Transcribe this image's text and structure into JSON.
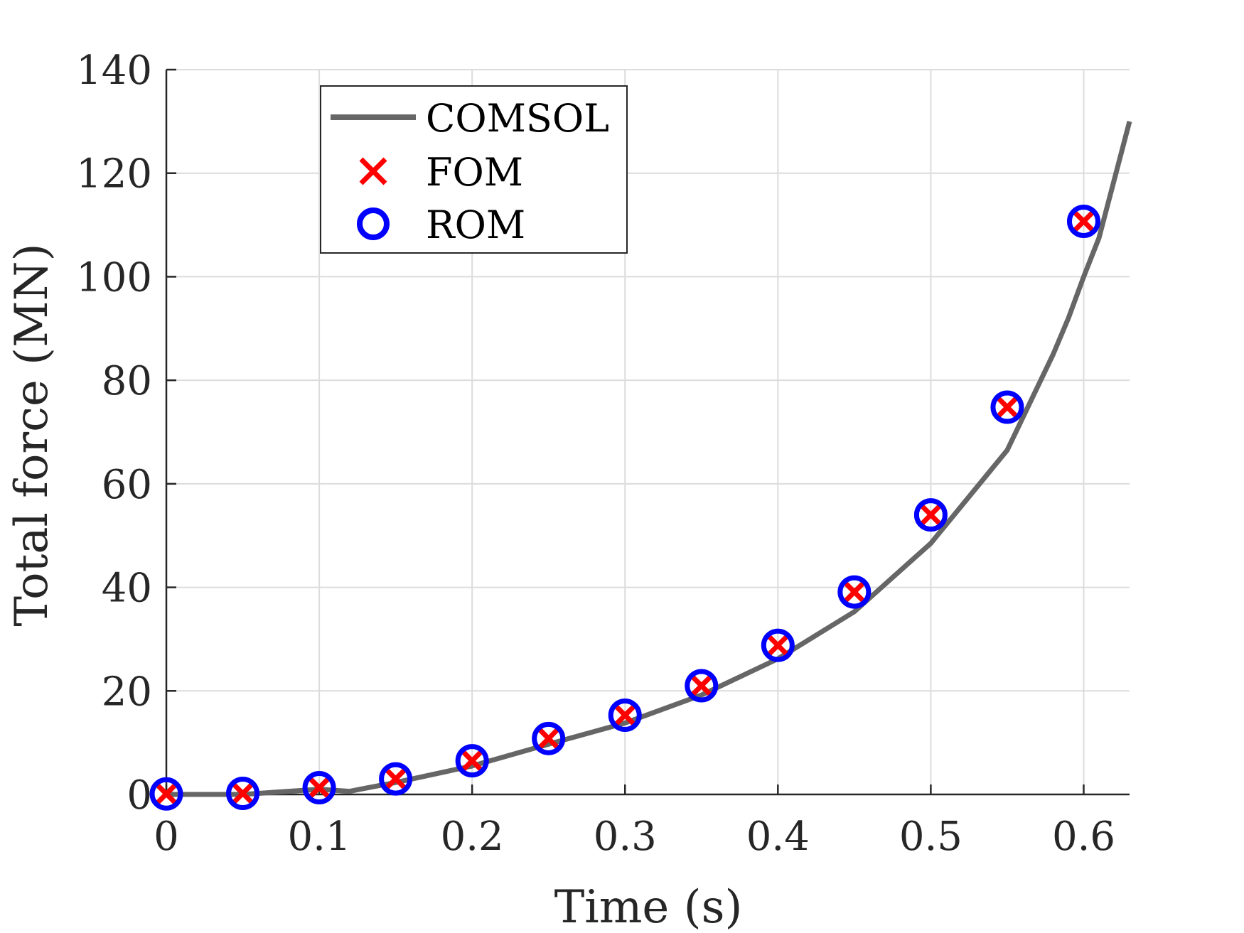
{
  "chart_data": {
    "type": "line",
    "title": "",
    "xlabel": "Time (s)",
    "ylabel": "Total force (MN)",
    "xlim": [
      0,
      0.63
    ],
    "ylim": [
      0,
      140
    ],
    "xticks": [
      0,
      0.1,
      0.2,
      0.3,
      0.4,
      0.5,
      0.6
    ],
    "xtick_labels": [
      "0",
      "0.1",
      "0.2",
      "0.3",
      "0.4",
      "0.5",
      "0.6"
    ],
    "yticks": [
      0,
      20,
      40,
      60,
      80,
      100,
      120,
      140
    ],
    "ytick_labels": [
      "0",
      "20",
      "40",
      "60",
      "80",
      "100",
      "120",
      "140"
    ],
    "grid": true,
    "legend_position": "top-left",
    "series": [
      {
        "name": "COMSOL",
        "style": "line",
        "color": "#666666",
        "x": [
          0,
          0.05,
          0.1,
          0.12,
          0.13,
          0.15,
          0.2,
          0.25,
          0.3,
          0.35,
          0.4,
          0.45,
          0.5,
          0.55,
          0.58,
          0.59,
          0.6,
          0.61,
          0.63
        ],
        "y": [
          0,
          0,
          1.0,
          0.6,
          1.2,
          2.3,
          5.5,
          9.7,
          13.8,
          19.2,
          26.2,
          35.3,
          48.5,
          66.5,
          85,
          92,
          100,
          107.5,
          130
        ]
      },
      {
        "name": "FOM",
        "style": "x-marker",
        "color": "#ff0000",
        "x": [
          0,
          0.05,
          0.1,
          0.15,
          0.2,
          0.25,
          0.3,
          0.35,
          0.4,
          0.45,
          0.5,
          0.55,
          0.6
        ],
        "y": [
          0.1,
          0.2,
          1.3,
          3.0,
          6.5,
          10.8,
          15.3,
          21.0,
          28.8,
          39.1,
          54.0,
          74.8,
          110.7
        ]
      },
      {
        "name": "ROM",
        "style": "o-marker",
        "color": "#0000ff",
        "x": [
          0,
          0.05,
          0.1,
          0.15,
          0.2,
          0.25,
          0.3,
          0.35,
          0.4,
          0.45,
          0.5,
          0.55,
          0.6
        ],
        "y": [
          0.1,
          0.2,
          1.3,
          3.0,
          6.5,
          10.8,
          15.3,
          21.0,
          28.8,
          39.1,
          54.0,
          74.8,
          110.7
        ]
      }
    ]
  }
}
